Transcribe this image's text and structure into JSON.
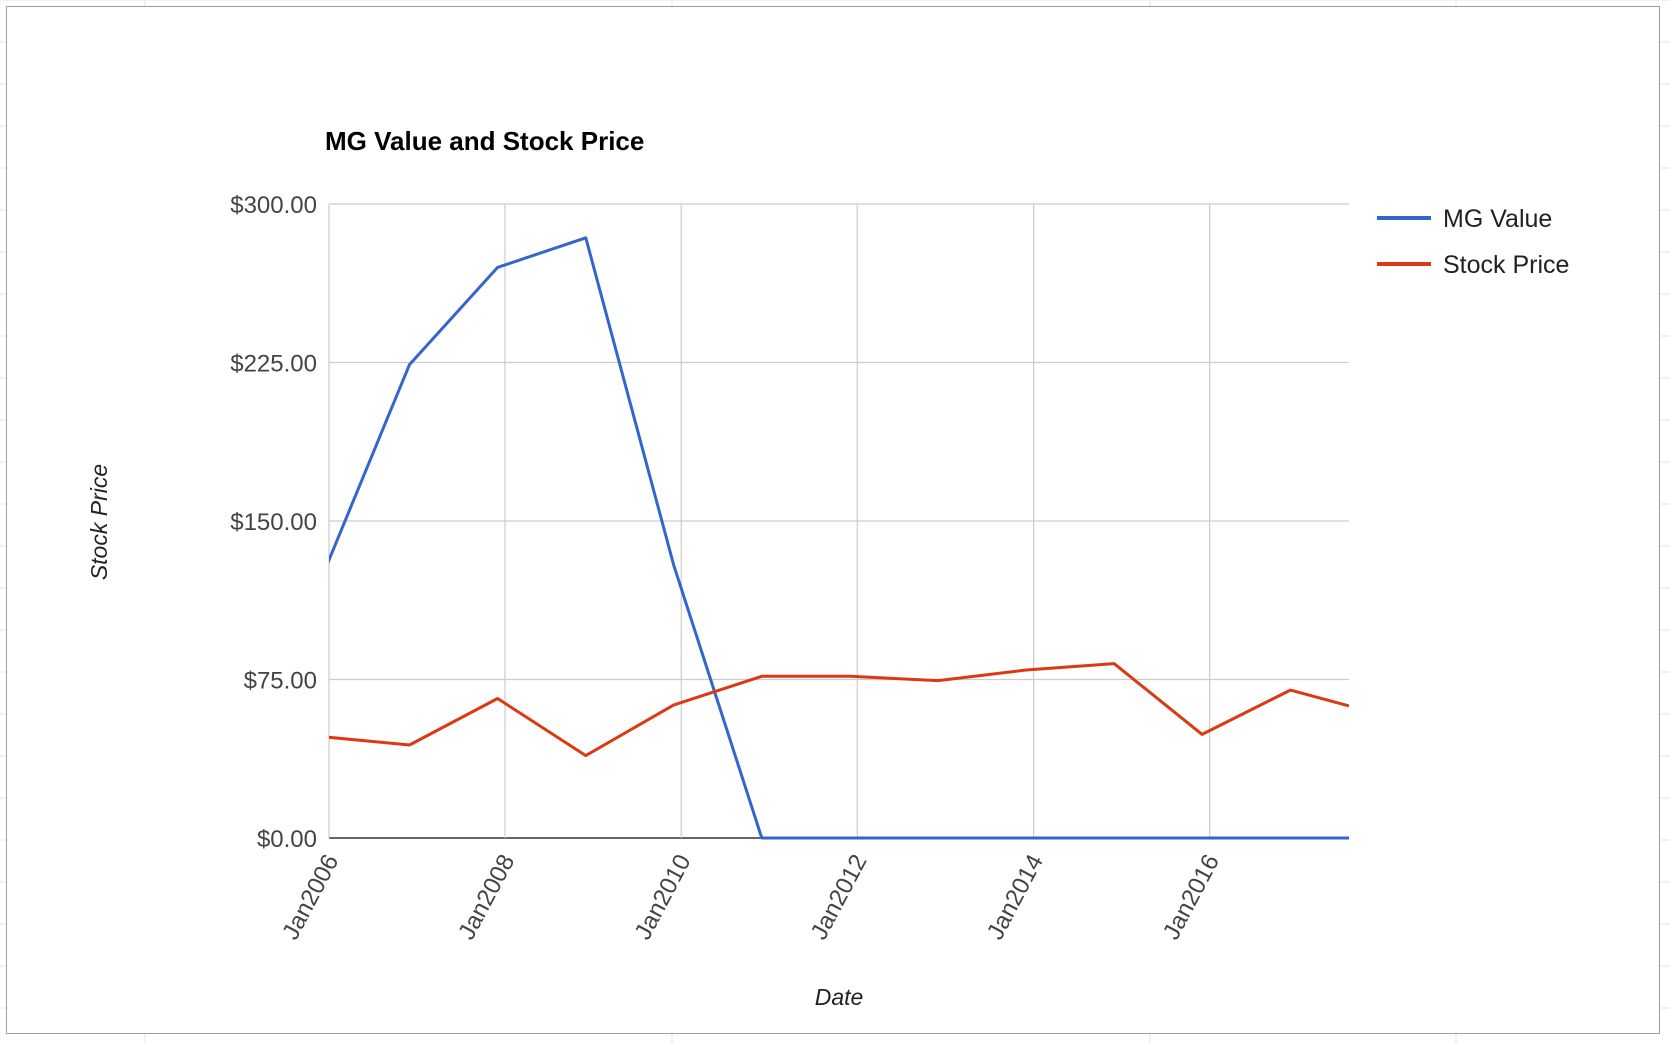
{
  "chart_data": {
    "type": "line",
    "title": "MG Value and Stock Price",
    "xlabel": "Date",
    "ylabel": "Stock Price",
    "x_type": "date",
    "x_range": [
      "2006-01-01",
      "2017-08-01"
    ],
    "x_ticks": [
      {
        "date": "2006-01-01",
        "label": "Jan2006"
      },
      {
        "date": "2008-01-01",
        "label": "Jan2008"
      },
      {
        "date": "2010-01-01",
        "label": "Jan2010"
      },
      {
        "date": "2012-01-01",
        "label": "Jan2012"
      },
      {
        "date": "2014-01-01",
        "label": "Jan2014"
      },
      {
        "date": "2016-01-01",
        "label": "Jan2016"
      }
    ],
    "ylim": [
      0,
      300
    ],
    "y_ticks": [
      {
        "value": 0,
        "label": "$0.00"
      },
      {
        "value": 75,
        "label": "$75.00"
      },
      {
        "value": 150,
        "label": "$150.00"
      },
      {
        "value": 225,
        "label": "$225.00"
      },
      {
        "value": 300,
        "label": "$300.00"
      }
    ],
    "grid": true,
    "legend_position": "right",
    "series": [
      {
        "name": "MG Value",
        "color": "#3366cc",
        "points": [
          {
            "x": "2005-12-01",
            "y": 123
          },
          {
            "x": "2006-12-01",
            "y": 224
          },
          {
            "x": "2007-12-01",
            "y": 270
          },
          {
            "x": "2008-12-01",
            "y": 284
          },
          {
            "x": "2009-12-01",
            "y": 129
          },
          {
            "x": "2010-12-01",
            "y": 0
          },
          {
            "x": "2011-12-01",
            "y": 0
          },
          {
            "x": "2012-12-01",
            "y": 0
          },
          {
            "x": "2013-12-01",
            "y": 0
          },
          {
            "x": "2014-12-01",
            "y": 0
          },
          {
            "x": "2015-12-01",
            "y": 0
          },
          {
            "x": "2016-12-01",
            "y": 0
          },
          {
            "x": "2017-08-01",
            "y": 0
          }
        ]
      },
      {
        "name": "Stock Price",
        "color": "#dc3912",
        "points": [
          {
            "x": "2005-12-01",
            "y": 48
          },
          {
            "x": "2006-12-01",
            "y": 44
          },
          {
            "x": "2007-12-01",
            "y": 66
          },
          {
            "x": "2008-12-01",
            "y": 39
          },
          {
            "x": "2009-12-01",
            "y": 63
          },
          {
            "x": "2010-12-01",
            "y": 76.5
          },
          {
            "x": "2011-12-01",
            "y": 76.5
          },
          {
            "x": "2012-12-01",
            "y": 74.5
          },
          {
            "x": "2013-12-01",
            "y": 79.5
          },
          {
            "x": "2014-12-01",
            "y": 82.5
          },
          {
            "x": "2015-12-01",
            "y": 49
          },
          {
            "x": "2016-12-01",
            "y": 70
          },
          {
            "x": "2017-08-01",
            "y": 62.5
          }
        ]
      }
    ]
  }
}
